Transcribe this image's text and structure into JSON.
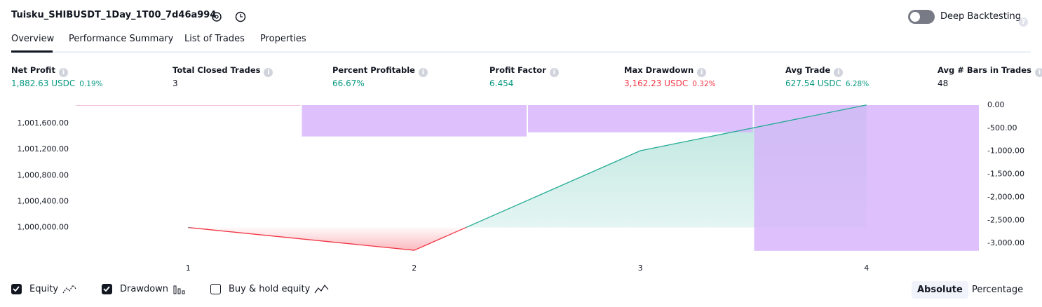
{
  "header": {
    "title": "Tuisku_SHIBUSDT_1Day_1T00_7d46a994",
    "toggle_label": "Deep Backtesting"
  },
  "tabs": [
    "Overview",
    "Performance Summary",
    "List of Trades",
    "Properties"
  ],
  "metrics": [
    {
      "label": "Net Profit",
      "value": "1,882.63 USDC",
      "percent": "0.19%",
      "color": "#089981"
    },
    {
      "label": "Total Closed Trades",
      "value": "3",
      "color": "#131722"
    },
    {
      "label": "Percent Profitable",
      "value": "66.67%",
      "color": "#089981"
    },
    {
      "label": "Profit Factor",
      "value": "6.454",
      "color": "#089981"
    },
    {
      "label": "Max Drawdown",
      "value": "3,162.23 USDC",
      "percent": "0.32%",
      "color": "#f23645"
    },
    {
      "label": "Avg Trade",
      "value": "627.54 USDC",
      "percent": "6.28%",
      "color": "#089981"
    },
    {
      "label": "Avg # Bars in Trades",
      "value": "48",
      "color": "#131722"
    }
  ],
  "chart_data": {
    "type": "line",
    "x": [
      1,
      2,
      3,
      4
    ],
    "xlim": [
      0.5,
      4.5
    ],
    "xticks": [
      1,
      2,
      3,
      4
    ],
    "ylim": [
      999640,
      1001880
    ],
    "yticks": [
      {
        "value": 1000000,
        "label": "1,000,000.00"
      },
      {
        "value": 1000400,
        "label": "1,000,400.00"
      },
      {
        "value": 1000800,
        "label": "1,000,800.00"
      },
      {
        "value": 1001200,
        "label": "1,001,200.00"
      },
      {
        "value": 1001600,
        "label": "1,001,600.00"
      }
    ],
    "y2lim": [
      -3165,
      0
    ],
    "y2ticks": [
      {
        "value": 0,
        "label": "0.00"
      },
      {
        "value": -500,
        "label": "-500.00"
      },
      {
        "value": -1000,
        "label": "-1,000.00"
      },
      {
        "value": -1500,
        "label": "-1,500.00"
      },
      {
        "value": -2000,
        "label": "-2,000.00"
      },
      {
        "value": -2500,
        "label": "-2,500.00"
      },
      {
        "value": -3000,
        "label": "-3,000.00"
      }
    ],
    "series": [
      {
        "name": "Equity",
        "type": "line",
        "color": "#22ab94",
        "negative_color": "#f23645",
        "values": [
          1000000,
          999650,
          1001180,
          1001882.63
        ]
      },
      {
        "name": "Drawdown",
        "type": "bar",
        "axis": "y2",
        "color": "#d6b1fb",
        "values": [
          0,
          -680,
          -590,
          -3162.23
        ]
      }
    ]
  },
  "footer": {
    "toggles": [
      "Equity",
      "Drawdown",
      "Buy & hold equity"
    ],
    "checked": [
      true,
      true,
      false
    ],
    "buttons": [
      "Absolute",
      "Percentage"
    ]
  }
}
